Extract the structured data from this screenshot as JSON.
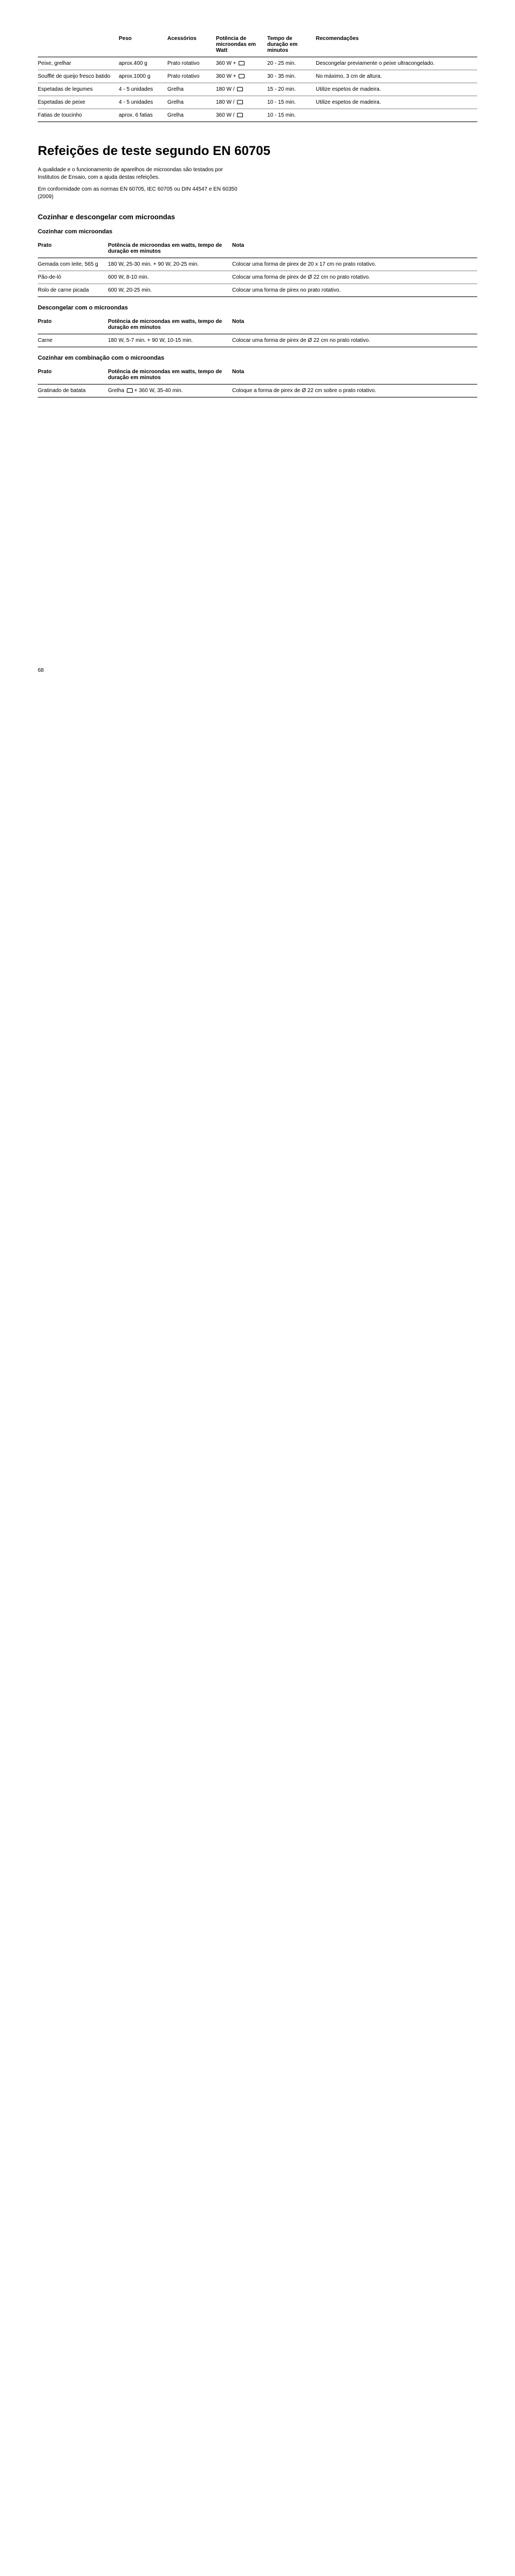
{
  "table1": {
    "headers": [
      "",
      "Peso",
      "Acessórios",
      "Potência de microondas em Watt",
      "Tempo de duração em minutos",
      "Recomendações"
    ],
    "rows": [
      [
        "Peixe, grelhar",
        "aprox.400 g",
        "Prato rotativo",
        "360 W + ⌂",
        "20 - 25 min.",
        "Descongelar previamente o peixe ultracongelado."
      ],
      [
        "Soufflé de queijo fresco batido",
        "aprox.1000 g",
        "Prato rotativo",
        "360 W + ⌂",
        "30 - 35 min.",
        "No máximo, 3 cm de altura."
      ],
      [
        "Espetadas de legumes",
        "4 - 5 unidades",
        "Grelha",
        "180 W / ⌂",
        "15 - 20 min.",
        "Utilize espetos de madeira."
      ],
      [
        "Espetadas de peixe",
        "4 - 5 unidades",
        "Grelha",
        "180 W / ⌂",
        "10 - 15 min.",
        "Utilize espetos de madeira."
      ],
      [
        "Fatias de toucinho",
        "aprox. 6 fatias",
        "Grelha",
        "360 W / ⌂",
        "10 - 15 min.",
        ""
      ]
    ],
    "col_widths": [
      "150px",
      "90px",
      "90px",
      "95px",
      "90px",
      "auto"
    ]
  },
  "title": "Refeições de teste segundo EN 60705",
  "intro1": "A qualidade e o funcionamento de aparelhos de microondas são testados por Institutos de Ensaio, com a ajuda destas refeições.",
  "intro2": "Em conformidade com as normas EN 60705, IEC 60705 ou DIN 44547 e EN 60350 (2009)",
  "section1_h2": "Cozinhar e descongelar com microondas",
  "section1_h3a": "Cozinhar com microondas",
  "table2": {
    "headers": [
      "Prato",
      "Potência de microondas em watts, tempo de duração em minutos",
      "Nota"
    ],
    "rows": [
      [
        "Gemada com leite, 565 g",
        "180 W, 25-30 min. + 90 W, 20-25 min.",
        "Colocar uma forma de pirex de 20 x 17 cm no prato rotativo."
      ],
      [
        "Pão-de-ló",
        "600 W, 8-10 min.",
        "Colocar uma forma de pirex de Ø 22 cm no prato rotativo."
      ],
      [
        "Rolo de carne picada",
        "600 W, 20-25 min.",
        "Colocar uma forma de pirex no prato rotativo."
      ]
    ]
  },
  "section1_h3b": "Descongelar com o microondas",
  "table3": {
    "headers": [
      "Prato",
      "Potência de microondas em watts, tempo de duração em minutos",
      "Nota"
    ],
    "rows": [
      [
        "Carne",
        "180 W, 5-7 min. + 90 W, 10-15 min.",
        "Colocar uma forma de pirex de Ø 22 cm no prato rotativo."
      ]
    ]
  },
  "section1_h3c": "Cozinhar em combinação com o microondas",
  "table4": {
    "headers": [
      "Prato",
      "Potência de microondas em watts, tempo de duração em minutos",
      "Nota"
    ],
    "rows": [
      [
        "Gratinado de batata",
        "Grelha ⌂ + 360 W, 35-40 min.",
        "Coloque a forma de pirex de Ø 22 cm sobre o prato rotativo."
      ]
    ]
  },
  "page_number": "68"
}
